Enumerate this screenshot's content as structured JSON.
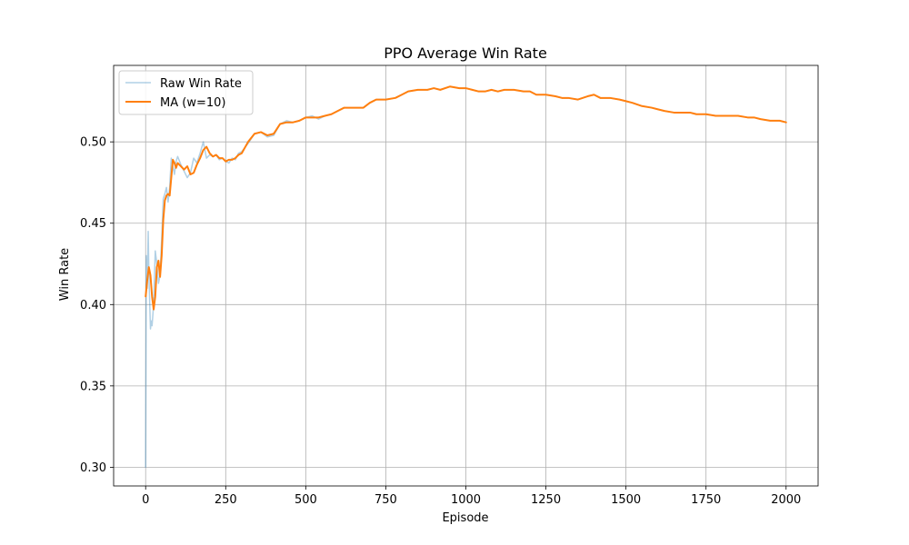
{
  "chart_data": {
    "type": "line",
    "title": "PPO Average Win Rate",
    "xlabel": "Episode",
    "ylabel": "Win Rate",
    "xlim": [
      -100,
      2100
    ],
    "ylim": [
      0.2885,
      0.547
    ],
    "xticks": [
      0,
      250,
      500,
      750,
      1000,
      1250,
      1500,
      1750,
      2000
    ],
    "yticks": [
      0.3,
      0.35,
      0.4,
      0.45,
      0.5
    ],
    "xtick_labels": [
      "0",
      "250",
      "500",
      "750",
      "1000",
      "1250",
      "1500",
      "1750",
      "2000"
    ],
    "ytick_labels": [
      "0.30",
      "0.35",
      "0.40",
      "0.45",
      "0.50"
    ],
    "grid": true,
    "legend": {
      "position": "upper-left",
      "entries": [
        "Raw Win Rate",
        "MA (w=10)"
      ]
    },
    "series": [
      {
        "name": "Raw Win Rate",
        "color": "#1f77b4",
        "alpha": 0.35,
        "x": [
          0,
          2,
          5,
          8,
          10,
          15,
          18,
          20,
          25,
          30,
          35,
          40,
          45,
          50,
          55,
          60,
          65,
          70,
          75,
          80,
          85,
          90,
          95,
          100,
          110,
          120,
          130,
          140,
          150,
          160,
          170,
          180,
          190,
          200,
          210,
          220,
          230,
          240,
          250,
          260,
          270,
          280,
          290,
          300,
          320,
          340,
          360,
          380,
          400,
          420,
          440,
          460,
          480,
          500,
          520,
          540,
          560,
          580,
          600,
          620,
          650,
          680,
          700,
          720,
          750,
          780,
          800,
          820,
          850,
          880,
          900,
          920,
          950,
          980,
          1000,
          1020,
          1040,
          1060,
          1080,
          1100,
          1120,
          1150,
          1180,
          1200,
          1220,
          1250,
          1280,
          1300,
          1320,
          1350,
          1380,
          1400,
          1420,
          1450,
          1480,
          1500,
          1520,
          1550,
          1580,
          1600,
          1620,
          1650,
          1680,
          1700,
          1720,
          1750,
          1780,
          1800,
          1820,
          1850,
          1880,
          1900,
          1920,
          1950,
          1980,
          2000
        ],
        "y": [
          0.3,
          0.43,
          0.41,
          0.445,
          0.42,
          0.385,
          0.39,
          0.387,
          0.4,
          0.433,
          0.425,
          0.413,
          0.418,
          0.44,
          0.465,
          0.468,
          0.472,
          0.463,
          0.472,
          0.49,
          0.485,
          0.48,
          0.488,
          0.491,
          0.486,
          0.482,
          0.478,
          0.481,
          0.49,
          0.487,
          0.493,
          0.5,
          0.49,
          0.492,
          0.491,
          0.492,
          0.489,
          0.49,
          0.488,
          0.487,
          0.49,
          0.489,
          0.493,
          0.494,
          0.499,
          0.505,
          0.506,
          0.503,
          0.504,
          0.511,
          0.513,
          0.512,
          0.513,
          0.515,
          0.516,
          0.514,
          0.516,
          0.517,
          0.519,
          0.521,
          0.521,
          0.521,
          0.524,
          0.526,
          0.526,
          0.527,
          0.529,
          0.531,
          0.532,
          0.532,
          0.533,
          0.532,
          0.534,
          0.533,
          0.533,
          0.532,
          0.531,
          0.531,
          0.532,
          0.531,
          0.532,
          0.532,
          0.531,
          0.531,
          0.529,
          0.529,
          0.528,
          0.527,
          0.527,
          0.526,
          0.528,
          0.529,
          0.527,
          0.527,
          0.526,
          0.525,
          0.524,
          0.522,
          0.521,
          0.52,
          0.519,
          0.518,
          0.518,
          0.518,
          0.517,
          0.517,
          0.516,
          0.516,
          0.516,
          0.516,
          0.515,
          0.515,
          0.514,
          0.513,
          0.513,
          0.512
        ]
      },
      {
        "name": "MA (w=10)",
        "color": "#ff7f0e",
        "alpha": 1,
        "x": [
          0,
          5,
          10,
          15,
          20,
          25,
          30,
          35,
          40,
          45,
          50,
          55,
          60,
          65,
          70,
          75,
          80,
          85,
          90,
          95,
          100,
          110,
          120,
          130,
          140,
          150,
          160,
          170,
          180,
          190,
          200,
          210,
          220,
          230,
          240,
          250,
          260,
          270,
          280,
          290,
          300,
          320,
          340,
          360,
          380,
          400,
          420,
          440,
          460,
          480,
          500,
          520,
          540,
          560,
          580,
          600,
          620,
          650,
          680,
          700,
          720,
          750,
          780,
          800,
          820,
          850,
          880,
          900,
          920,
          950,
          980,
          1000,
          1020,
          1040,
          1060,
          1080,
          1100,
          1120,
          1150,
          1180,
          1200,
          1220,
          1250,
          1280,
          1300,
          1320,
          1350,
          1380,
          1400,
          1420,
          1450,
          1480,
          1500,
          1520,
          1550,
          1580,
          1600,
          1620,
          1650,
          1680,
          1700,
          1720,
          1750,
          1780,
          1800,
          1820,
          1850,
          1880,
          1900,
          1920,
          1950,
          1980,
          2000
        ],
        "y": [
          0.405,
          0.415,
          0.423,
          0.418,
          0.405,
          0.397,
          0.405,
          0.423,
          0.427,
          0.417,
          0.43,
          0.452,
          0.464,
          0.467,
          0.468,
          0.467,
          0.478,
          0.489,
          0.487,
          0.484,
          0.487,
          0.485,
          0.483,
          0.485,
          0.48,
          0.481,
          0.486,
          0.49,
          0.495,
          0.497,
          0.493,
          0.491,
          0.492,
          0.49,
          0.49,
          0.488,
          0.489,
          0.489,
          0.49,
          0.492,
          0.493,
          0.5,
          0.505,
          0.506,
          0.504,
          0.505,
          0.511,
          0.512,
          0.512,
          0.513,
          0.515,
          0.515,
          0.515,
          0.516,
          0.517,
          0.519,
          0.521,
          0.521,
          0.521,
          0.524,
          0.526,
          0.526,
          0.527,
          0.529,
          0.531,
          0.532,
          0.532,
          0.533,
          0.532,
          0.534,
          0.533,
          0.533,
          0.532,
          0.531,
          0.531,
          0.532,
          0.531,
          0.532,
          0.532,
          0.531,
          0.531,
          0.529,
          0.529,
          0.528,
          0.527,
          0.527,
          0.526,
          0.528,
          0.529,
          0.527,
          0.527,
          0.526,
          0.525,
          0.524,
          0.522,
          0.521,
          0.52,
          0.519,
          0.518,
          0.518,
          0.518,
          0.517,
          0.517,
          0.516,
          0.516,
          0.516,
          0.516,
          0.515,
          0.515,
          0.514,
          0.513,
          0.513,
          0.512
        ]
      }
    ]
  }
}
